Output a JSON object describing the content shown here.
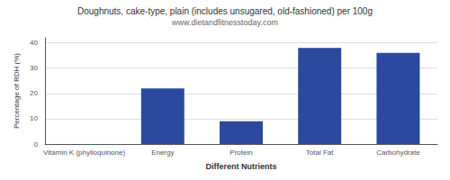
{
  "chart_data": {
    "type": "bar",
    "title": "Doughnuts, cake-type, plain (includes unsugared, old-fashioned) per 100g",
    "subtitle": "www.dietandfitnesstoday.com",
    "xlabel": "Different Nutrients",
    "ylabel": "Percentage of RDH (%)",
    "categories": [
      "Vitamin K (phylloquinone)",
      "Energy",
      "Protein",
      "Total Fat",
      "Carbohydrate"
    ],
    "values": [
      0,
      22,
      9,
      38,
      36
    ],
    "color": "#2b4a9e",
    "ylim": [
      0,
      42
    ],
    "yticks": [
      0,
      10,
      20,
      30,
      40
    ],
    "grid": true
  }
}
